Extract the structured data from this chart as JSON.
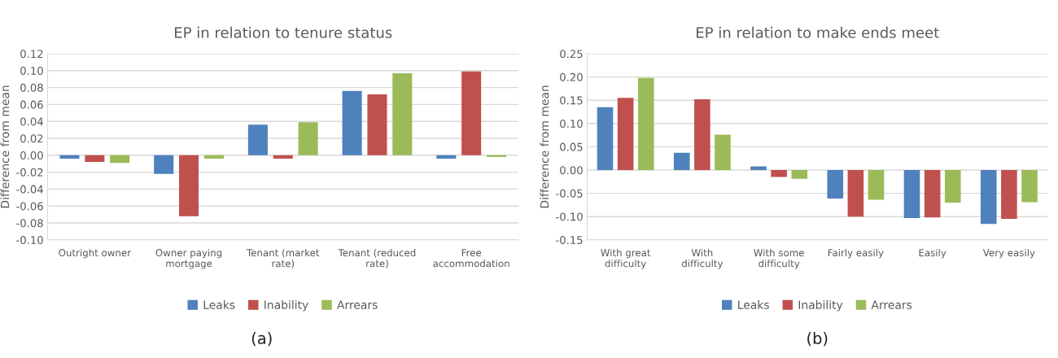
{
  "chart_data": [
    {
      "type": "bar",
      "title": "EP in relation to tenure status",
      "ylabel": "Difference from mean",
      "categories": [
        "Outright owner",
        "Owner paying\nmortgage",
        "Tenant (market\nrate)",
        "Tenant (reduced\nrate)",
        "Free\naccommodation"
      ],
      "series": [
        {
          "name": "Leaks",
          "color": "#4f81bd",
          "values": [
            -0.004,
            -0.022,
            0.036,
            0.076,
            -0.004
          ]
        },
        {
          "name": "Inability",
          "color": "#c0504d",
          "values": [
            -0.008,
            -0.072,
            -0.004,
            0.072,
            0.099
          ]
        },
        {
          "name": "Arrears",
          "color": "#9bbb59",
          "values": [
            -0.009,
            -0.004,
            0.039,
            0.097,
            -0.002
          ]
        }
      ],
      "ylim": [
        -0.1,
        0.12
      ],
      "yticks": [
        {
          "value": -0.1,
          "label": "-0.10"
        },
        {
          "value": -0.08,
          "label": "-0.08"
        },
        {
          "value": -0.06,
          "label": "-0.06"
        },
        {
          "value": -0.04,
          "label": "-0.04"
        },
        {
          "value": -0.02,
          "label": "-0.02"
        },
        {
          "value": 0,
          "label": "0.00"
        },
        {
          "value": 0.02,
          "label": "0.02"
        },
        {
          "value": 0.04,
          "label": "0.04"
        },
        {
          "value": 0.06,
          "label": "0.06"
        },
        {
          "value": 0.08,
          "label": "0.08"
        },
        {
          "value": 0.1,
          "label": "0.10"
        },
        {
          "value": 0.12,
          "label": "0.12"
        }
      ],
      "grid": "y",
      "legend": "bottom",
      "annotations": [
        "(a)"
      ]
    },
    {
      "type": "bar",
      "title": "EP in relation to make ends meet",
      "ylabel": "Difference from mean",
      "categories": [
        "With great\ndifficulty",
        "With\ndifficulty",
        "With some\ndifficulty",
        "Fairly easily",
        "Easily",
        "Very easily"
      ],
      "series": [
        {
          "name": "Leaks",
          "color": "#4f81bd",
          "values": [
            0.135,
            0.037,
            0.008,
            -0.061,
            -0.103,
            -0.116
          ]
        },
        {
          "name": "Inability",
          "color": "#c0504d",
          "values": [
            0.155,
            0.152,
            -0.015,
            -0.1,
            -0.102,
            -0.105
          ]
        },
        {
          "name": "Arrears",
          "color": "#9bbb59",
          "values": [
            0.198,
            0.076,
            -0.019,
            -0.064,
            -0.07,
            -0.069
          ]
        }
      ],
      "ylim": [
        -0.15,
        0.25
      ],
      "yticks": [
        {
          "value": -0.15,
          "label": "-0.15"
        },
        {
          "value": -0.1,
          "label": "-0.10"
        },
        {
          "value": -0.05,
          "label": "-0.05"
        },
        {
          "value": 0,
          "label": "0.00"
        },
        {
          "value": 0.05,
          "label": "0.05"
        },
        {
          "value": 0.1,
          "label": "0.10"
        },
        {
          "value": 0.15,
          "label": "0.15"
        },
        {
          "value": 0.2,
          "label": "0.20"
        },
        {
          "value": 0.25,
          "label": "0.25"
        }
      ],
      "grid": "y",
      "legend": "bottom",
      "annotations": [
        "(b)"
      ]
    }
  ]
}
